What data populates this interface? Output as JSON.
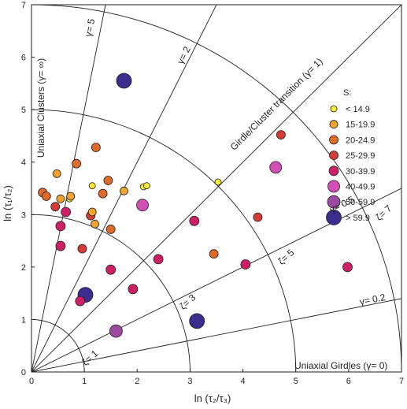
{
  "chart_data": {
    "type": "scatter",
    "xlim": [
      0,
      7
    ],
    "ylim": [
      0,
      7
    ],
    "x_ticks": [
      "0",
      "1",
      "2",
      "3",
      "4",
      "5",
      "6",
      "7"
    ],
    "y_ticks": [
      "0",
      "1",
      "2",
      "3",
      "4",
      "5",
      "6",
      "7"
    ],
    "xlabel": "ln (τ₂/τ₃)",
    "ylabel": "ln (τ₁/τ₂)",
    "gamma_lines": [
      {
        "gamma": 0,
        "label": "Uniaxial Girdles (γ= 0)"
      },
      {
        "gamma": 0.2,
        "label": "γ= 0.2"
      },
      {
        "gamma": 0.5,
        "label": "γ= 0.5"
      },
      {
        "gamma": 1,
        "label": "Girdle/Cluster transition (γ= 1)"
      },
      {
        "gamma": 2,
        "label": "γ= 2"
      },
      {
        "gamma": 5,
        "label": "γ= 5"
      },
      {
        "gamma": "∞",
        "label": "Uniaxial Clusters (γ= ∞)"
      }
    ],
    "zeta_arcs": [
      {
        "zeta": 1,
        "label": "ζ= 1"
      },
      {
        "zeta": 3,
        "label": "ζ= 3"
      },
      {
        "zeta": 5,
        "label": "ζ= 5"
      },
      {
        "zeta": 7,
        "label": "ζ= 7"
      }
    ],
    "legend": {
      "title": "S:",
      "position": "upper-right",
      "classes": [
        {
          "label": "< 14.9",
          "color": "#f5ec3a"
        },
        {
          "label": "15-19.9",
          "color": "#f0a32e"
        },
        {
          "label": "20-24.9",
          "color": "#e06a28"
        },
        {
          "label": "25-29.9",
          "color": "#d63c36"
        },
        {
          "label": "30-39.9",
          "color": "#cc1f66"
        },
        {
          "label": "40-49.9",
          "color": "#cf4fb4"
        },
        {
          "label": "50-59.9",
          "color": "#9b4a9e"
        },
        {
          "label": "> 59.9",
          "color": "#3a2d8e"
        }
      ]
    },
    "points": [
      {
        "x": 0.21,
        "y": 3.42,
        "cls": 2
      },
      {
        "x": 0.28,
        "y": 3.35,
        "cls": 2
      },
      {
        "x": 0.45,
        "y": 3.15,
        "cls": 3
      },
      {
        "x": 0.48,
        "y": 3.78,
        "cls": 1
      },
      {
        "x": 0.55,
        "y": 3.3,
        "cls": 1
      },
      {
        "x": 0.72,
        "y": 3.3,
        "cls": 0
      },
      {
        "x": 0.74,
        "y": 3.35,
        "cls": 1
      },
      {
        "x": 0.85,
        "y": 3.97,
        "cls": 2
      },
      {
        "x": 1.15,
        "y": 3.55,
        "cls": 0
      },
      {
        "x": 1.22,
        "y": 4.28,
        "cls": 2
      },
      {
        "x": 1.45,
        "y": 3.65,
        "cls": 2
      },
      {
        "x": 1.35,
        "y": 3.4,
        "cls": 2
      },
      {
        "x": 1.75,
        "y": 3.45,
        "cls": 1
      },
      {
        "x": 2.12,
        "y": 3.53,
        "cls": 0
      },
      {
        "x": 2.18,
        "y": 3.55,
        "cls": 0
      },
      {
        "x": 1.12,
        "y": 2.98,
        "cls": 3
      },
      {
        "x": 1.15,
        "y": 3.05,
        "cls": 1
      },
      {
        "x": 1.2,
        "y": 2.82,
        "cls": 1
      },
      {
        "x": 1.5,
        "y": 2.72,
        "cls": 2
      },
      {
        "x": 0.65,
        "y": 3.05,
        "cls": 4
      },
      {
        "x": 0.55,
        "y": 2.78,
        "cls": 4
      },
      {
        "x": 0.55,
        "y": 2.4,
        "cls": 4
      },
      {
        "x": 0.96,
        "y": 2.35,
        "cls": 3
      },
      {
        "x": 1.75,
        "y": 5.55,
        "cls": 7
      },
      {
        "x": 2.1,
        "y": 3.18,
        "cls": 5
      },
      {
        "x": 3.53,
        "y": 3.62,
        "cls": 0
      },
      {
        "x": 4.72,
        "y": 4.52,
        "cls": 3
      },
      {
        "x": 4.62,
        "y": 3.9,
        "cls": 5
      },
      {
        "x": 4.28,
        "y": 2.95,
        "cls": 3
      },
      {
        "x": 3.08,
        "y": 2.88,
        "cls": 4
      },
      {
        "x": 3.45,
        "y": 2.25,
        "cls": 2
      },
      {
        "x": 2.4,
        "y": 2.15,
        "cls": 4
      },
      {
        "x": 1.5,
        "y": 1.95,
        "cls": 4
      },
      {
        "x": 4.05,
        "y": 2.05,
        "cls": 4
      },
      {
        "x": 5.98,
        "y": 2.0,
        "cls": 4
      },
      {
        "x": 1.92,
        "y": 1.58,
        "cls": 4
      },
      {
        "x": 1.02,
        "y": 1.47,
        "cls": 7
      },
      {
        "x": 0.92,
        "y": 1.35,
        "cls": 4
      },
      {
        "x": 1.6,
        "y": 0.78,
        "cls": 6
      },
      {
        "x": 3.13,
        "y": 0.97,
        "cls": 7
      }
    ]
  }
}
